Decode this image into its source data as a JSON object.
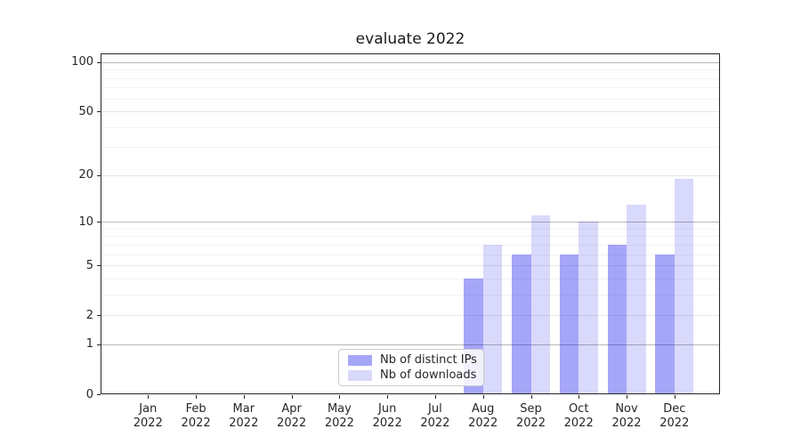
{
  "chart_data": {
    "type": "bar",
    "title": "evaluate 2022",
    "xlabel": "",
    "ylabel": "",
    "x": {
      "categories": [
        "Jan",
        "Feb",
        "Mar",
        "Apr",
        "May",
        "Jun",
        "Jul",
        "Aug",
        "Sep",
        "Oct",
        "Nov",
        "Dec"
      ],
      "year_label": "2022"
    },
    "series": [
      {
        "name": "Nb of distinct IPs",
        "color": "#0000ee",
        "alpha": 0.35,
        "values": [
          0,
          0,
          0,
          0,
          0,
          0,
          0,
          4,
          6,
          6,
          7,
          6
        ]
      },
      {
        "name": "Nb of downloads",
        "color": "#0000ee",
        "alpha": 0.15,
        "values": [
          0,
          0,
          0,
          0,
          0,
          0,
          0,
          7,
          11,
          10,
          13,
          19
        ]
      }
    ],
    "yscale": "log1p",
    "ylim": [
      0,
      110
    ],
    "yticks_major": [
      0,
      1,
      2,
      5,
      10,
      20,
      50,
      100
    ],
    "yticks_minor": [
      3,
      4,
      6,
      7,
      8,
      9,
      30,
      40,
      60,
      70,
      80,
      90
    ],
    "grid": true,
    "legend_position": "inside bottom-center"
  },
  "colors": {
    "spine": "#262626",
    "text": "#262626",
    "grid_decade": "#b8b8b8",
    "grid_labeled": "#e7e7e7",
    "grid_minor": "#f2f2f2",
    "legend_border": "#cccccc"
  }
}
